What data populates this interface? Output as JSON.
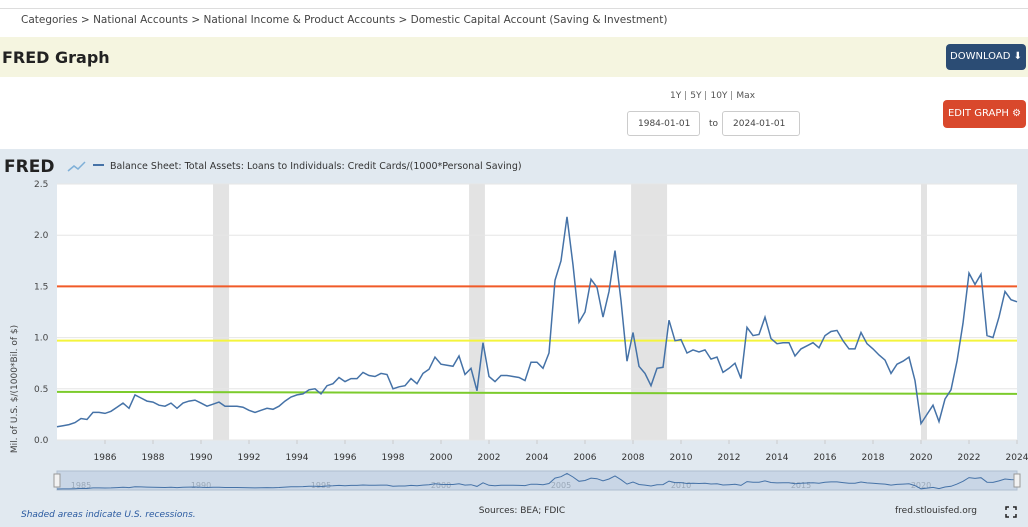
{
  "breadcrumb": "Categories > National Accounts > National Income & Product Accounts > Domestic Capital Account (Saving & Investment)",
  "header": {
    "title": "FRED Graph",
    "download": "DOWNLOAD"
  },
  "controls": {
    "ranges": [
      "1Y",
      "5Y",
      "10Y",
      "Max"
    ],
    "start": "1984-01-01",
    "to": "to",
    "end": "2024-01-01",
    "edit": "EDIT GRAPH"
  },
  "chart_data": {
    "type": "line",
    "logo": "FRED",
    "ylabel": "Mil. of U.S. $/(1000*Bil. of $)",
    "series": [
      {
        "name": "Balance Sheet: Total Assets: Loans to Individuals: Credit Cards/(1000*Personal Saving)",
        "color": "#4572a7",
        "x": [
          1984,
          1984.25,
          1984.5,
          1984.75,
          1985,
          1985.25,
          1985.5,
          1985.75,
          1986,
          1986.25,
          1986.5,
          1986.75,
          1987,
          1987.25,
          1987.5,
          1987.75,
          1988,
          1988.25,
          1988.5,
          1988.75,
          1989,
          1989.25,
          1989.5,
          1989.75,
          1990,
          1990.25,
          1990.5,
          1990.75,
          1991,
          1991.25,
          1991.5,
          1991.75,
          1992,
          1992.25,
          1992.5,
          1992.75,
          1993,
          1993.25,
          1993.5,
          1993.75,
          1994,
          1994.25,
          1994.5,
          1994.75,
          1995,
          1995.25,
          1995.5,
          1995.75,
          1996,
          1996.25,
          1996.5,
          1996.75,
          1997,
          1997.25,
          1997.5,
          1997.75,
          1998,
          1998.25,
          1998.5,
          1998.75,
          1999,
          1999.25,
          1999.5,
          1999.75,
          2000,
          2000.25,
          2000.5,
          2000.75,
          2001,
          2001.25,
          2001.5,
          2001.75,
          2002,
          2002.25,
          2002.5,
          2002.75,
          2003,
          2003.25,
          2003.5,
          2003.75,
          2004,
          2004.25,
          2004.5,
          2004.75,
          2005,
          2005.25,
          2005.5,
          2005.75,
          2006,
          2006.25,
          2006.5,
          2006.75,
          2007,
          2007.25,
          2007.5,
          2007.75,
          2008,
          2008.25,
          2008.5,
          2008.75,
          2009,
          2009.25,
          2009.5,
          2009.75,
          2010,
          2010.25,
          2010.5,
          2010.75,
          2011,
          2011.25,
          2011.5,
          2011.75,
          2012,
          2012.25,
          2012.5,
          2012.75,
          2013,
          2013.25,
          2013.5,
          2013.75,
          2014,
          2014.25,
          2014.5,
          2014.75,
          2015,
          2015.25,
          2015.5,
          2015.75,
          2016,
          2016.25,
          2016.5,
          2016.75,
          2017,
          2017.25,
          2017.5,
          2017.75,
          2018,
          2018.25,
          2018.5,
          2018.75,
          2019,
          2019.25,
          2019.5,
          2019.75,
          2020,
          2020.25,
          2020.5,
          2020.75,
          2021,
          2021.25,
          2021.5,
          2021.75,
          2022,
          2022.25,
          2022.5,
          2022.75,
          2023,
          2023.25,
          2023.5,
          2023.75,
          2024
        ],
        "values": [
          0.13,
          0.14,
          0.15,
          0.17,
          0.21,
          0.2,
          0.27,
          0.27,
          0.26,
          0.28,
          0.32,
          0.36,
          0.31,
          0.44,
          0.41,
          0.38,
          0.37,
          0.34,
          0.33,
          0.36,
          0.31,
          0.36,
          0.38,
          0.39,
          0.36,
          0.33,
          0.35,
          0.37,
          0.33,
          0.33,
          0.33,
          0.32,
          0.29,
          0.27,
          0.29,
          0.31,
          0.3,
          0.33,
          0.38,
          0.42,
          0.44,
          0.45,
          0.49,
          0.5,
          0.45,
          0.53,
          0.55,
          0.61,
          0.57,
          0.6,
          0.6,
          0.66,
          0.63,
          0.62,
          0.65,
          0.64,
          0.5,
          0.52,
          0.53,
          0.6,
          0.55,
          0.65,
          0.69,
          0.81,
          0.74,
          0.73,
          0.72,
          0.82,
          0.64,
          0.7,
          0.48,
          0.95,
          0.62,
          0.57,
          0.63,
          0.63,
          0.62,
          0.61,
          0.58,
          0.76,
          0.76,
          0.7,
          0.85,
          1.56,
          1.75,
          2.18,
          1.71,
          1.15,
          1.25,
          1.57,
          1.49,
          1.2,
          1.45,
          1.85,
          1.36,
          0.77,
          1.05,
          0.72,
          0.65,
          0.53,
          0.7,
          0.71,
          1.17,
          0.97,
          0.98,
          0.85,
          0.88,
          0.86,
          0.88,
          0.79,
          0.81,
          0.66,
          0.7,
          0.75,
          0.6,
          1.1,
          1.02,
          1.03,
          1.2,
          0.99,
          0.94,
          0.95,
          0.95,
          0.82,
          0.89,
          0.92,
          0.95,
          0.9,
          1.02,
          1.06,
          1.07,
          0.97,
          0.89,
          0.89,
          1.05,
          0.94,
          0.89,
          0.83,
          0.78,
          0.65,
          0.74,
          0.77,
          0.81,
          0.58,
          0.16,
          0.25,
          0.34,
          0.18,
          0.4,
          0.49,
          0.77,
          1.14,
          1.63,
          1.52,
          1.62,
          1.02,
          1.0,
          1.2,
          1.45,
          1.37,
          1.35
        ]
      }
    ],
    "reference_lines": [
      {
        "color": "#f05a28",
        "values": [
          1.5,
          1.5
        ]
      },
      {
        "color": "#f4f43c",
        "values": [
          0.97,
          0.97
        ]
      },
      {
        "color": "#7ccb2c",
        "values": [
          0.47,
          0.45
        ]
      }
    ],
    "recessions": [
      [
        1990.5,
        1991.17
      ],
      [
        2001.17,
        2001.83
      ],
      [
        2007.92,
        2009.42
      ],
      [
        2020,
        2020.25
      ]
    ],
    "xlim": [
      1984,
      2024
    ],
    "xticks": [
      1986,
      1988,
      1990,
      1992,
      1994,
      1996,
      1998,
      2000,
      2002,
      2004,
      2006,
      2008,
      2010,
      2012,
      2014,
      2016,
      2018,
      2020,
      2022,
      2024
    ],
    "ylim": [
      0,
      2.5
    ],
    "yticks": [
      {
        "value": 0,
        "label": "0.0"
      },
      0.5,
      {
        "value": 1,
        "label": "1.0"
      },
      1.5,
      {
        "value": 2,
        "label": "2.0"
      },
      2.5
    ],
    "grid": true,
    "navigator_ticks": [
      1985,
      1990,
      1995,
      2000,
      2005,
      2010,
      2015,
      2020
    ],
    "note": "Shaded areas indicate U.S. recessions.",
    "source": "Sources: BEA; FDIC",
    "site": "fred.stlouisfed.org"
  }
}
